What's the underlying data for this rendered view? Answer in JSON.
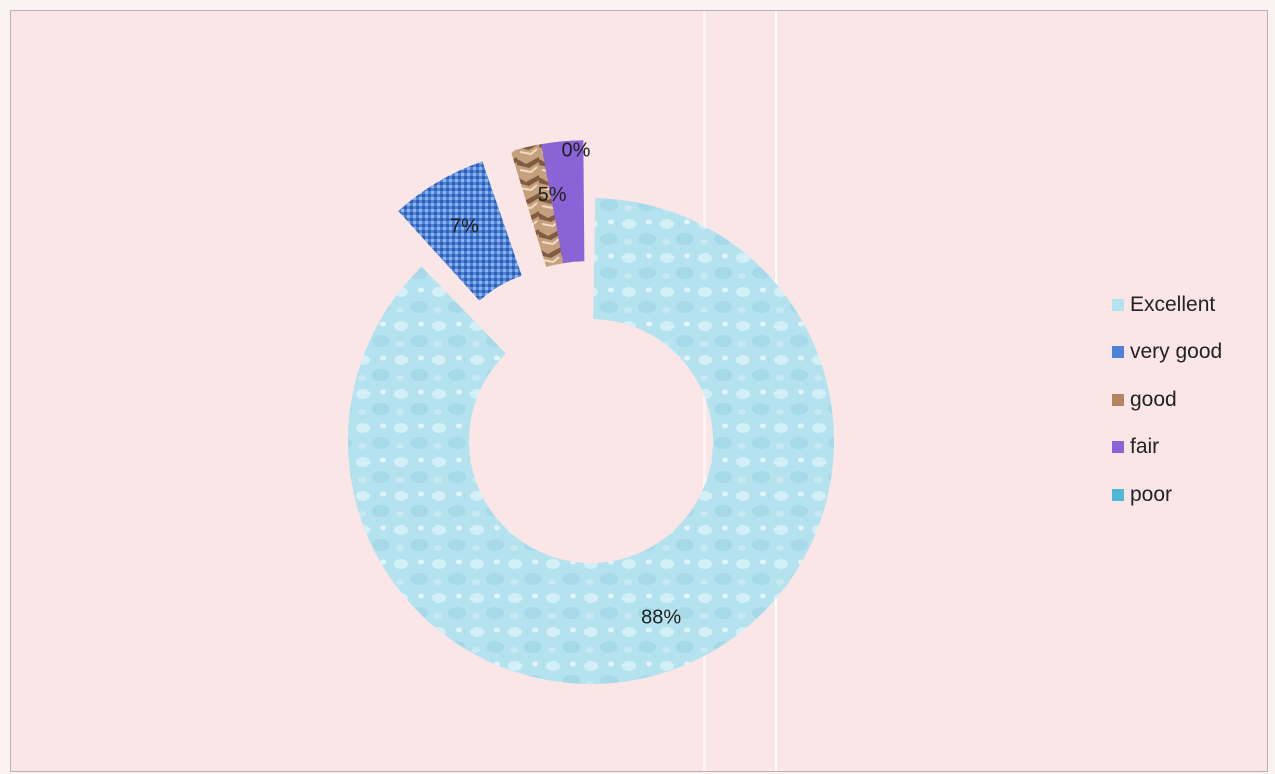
{
  "chart_data": {
    "type": "pie",
    "variant": "donut",
    "categories": [
      "Excellent",
      "very good",
      "good",
      "fair",
      "poor"
    ],
    "values": [
      88,
      7,
      5,
      0,
      0
    ],
    "data_labels": [
      "88%",
      "7%",
      "5%",
      "0%",
      ""
    ],
    "colors": [
      "#b5e2ef",
      "#4d82d6",
      "#b48561",
      "#8a63d6",
      "#4fb8d2"
    ],
    "exploded": true,
    "legend": "right",
    "title": ""
  }
}
